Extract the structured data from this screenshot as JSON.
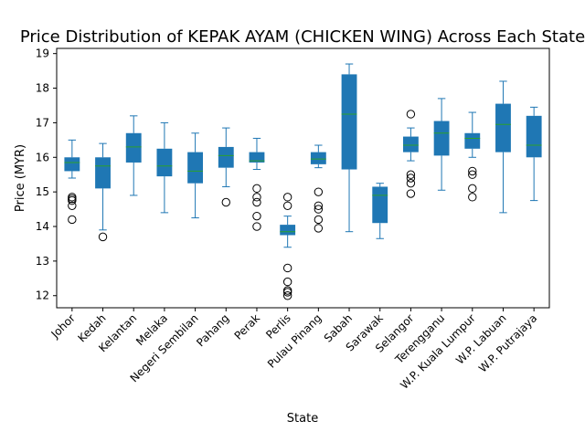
{
  "chart_data": {
    "type": "box",
    "title": "Price Distribution of KEPAK AYAM (CHICKEN WING) Across Each State",
    "xlabel": "State",
    "ylabel": "Price (MYR)",
    "ylim": [
      11.65,
      19.15
    ],
    "yticks": [
      12,
      13,
      14,
      15,
      16,
      17,
      18,
      19
    ],
    "grid": false,
    "box_color": "#1f77b4",
    "median_color": "#2ca02c",
    "categories": [
      "Johor",
      "Kedah",
      "Kelantan",
      "Melaka",
      "Negeri Sembilan",
      "Pahang",
      "Perak",
      "Perlis",
      "Pulau Pinang",
      "Sabah",
      "Sarawak",
      "Selangor",
      "Terengganu",
      "W.P. Kuala Lumpur",
      "W.P. Labuan",
      "W.P. Putrajaya"
    ],
    "boxes": [
      {
        "whislo": 15.4,
        "q1": 15.6,
        "med": 15.85,
        "q3": 16.0,
        "whishi": 16.5,
        "fliers": [
          14.85,
          14.8,
          14.75,
          14.6,
          14.2
        ]
      },
      {
        "whislo": 13.9,
        "q1": 15.1,
        "med": 15.75,
        "q3": 16.0,
        "whishi": 16.4,
        "fliers": [
          13.7
        ]
      },
      {
        "whislo": 14.9,
        "q1": 15.85,
        "med": 16.3,
        "q3": 16.7,
        "whishi": 17.2,
        "fliers": []
      },
      {
        "whislo": 14.4,
        "q1": 15.45,
        "med": 15.75,
        "q3": 16.25,
        "whishi": 17.0,
        "fliers": []
      },
      {
        "whislo": 14.25,
        "q1": 15.25,
        "med": 15.6,
        "q3": 16.15,
        "whishi": 16.7,
        "fliers": []
      },
      {
        "whislo": 15.15,
        "q1": 15.7,
        "med": 16.05,
        "q3": 16.3,
        "whishi": 16.85,
        "fliers": [
          14.7
        ]
      },
      {
        "whislo": 15.65,
        "q1": 15.85,
        "med": 15.9,
        "q3": 16.15,
        "whishi": 16.55,
        "fliers": [
          15.1,
          14.85,
          14.7,
          14.3,
          14.0
        ]
      },
      {
        "whislo": 13.4,
        "q1": 13.75,
        "med": 13.85,
        "q3": 14.05,
        "whishi": 14.3,
        "fliers": [
          14.85,
          14.6,
          12.8,
          12.4,
          12.15,
          12.1,
          12.0
        ]
      },
      {
        "whislo": 15.7,
        "q1": 15.8,
        "med": 15.95,
        "q3": 16.15,
        "whishi": 16.35,
        "fliers": [
          15.0,
          14.6,
          14.5,
          14.2,
          13.95
        ]
      },
      {
        "whislo": 13.85,
        "q1": 15.65,
        "med": 17.25,
        "q3": 18.4,
        "whishi": 18.7,
        "fliers": []
      },
      {
        "whislo": 13.65,
        "q1": 14.1,
        "med": 14.9,
        "q3": 15.15,
        "whishi": 15.25,
        "fliers": []
      },
      {
        "whislo": 15.9,
        "q1": 16.15,
        "med": 16.35,
        "q3": 16.6,
        "whishi": 16.85,
        "fliers": [
          17.25,
          15.5,
          15.4,
          15.25,
          14.95
        ]
      },
      {
        "whislo": 15.05,
        "q1": 16.05,
        "med": 16.7,
        "q3": 17.05,
        "whishi": 17.7,
        "fliers": []
      },
      {
        "whislo": 16.0,
        "q1": 16.25,
        "med": 16.55,
        "q3": 16.7,
        "whishi": 17.3,
        "fliers": [
          15.6,
          15.5,
          15.1,
          14.85
        ]
      },
      {
        "whislo": 14.4,
        "q1": 16.15,
        "med": 16.95,
        "q3": 17.55,
        "whishi": 18.2,
        "fliers": []
      },
      {
        "whislo": 14.75,
        "q1": 16.0,
        "med": 16.35,
        "q3": 17.2,
        "whishi": 17.45,
        "fliers": []
      }
    ]
  }
}
